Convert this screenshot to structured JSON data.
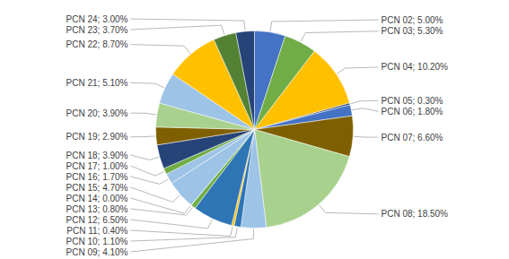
{
  "chart_data": {
    "type": "pie",
    "categories": [
      "PCN 02; 5.00%",
      "PCN 03; 5.30%",
      "PCN 04; 10.20%",
      "PCN 05; 0.30%",
      "PCN 06; 1.80%",
      "PCN 07; 6.60%",
      "PCN 08; 18.50%",
      "PCN 09; 4.10%",
      "PCN 10; 1.10%",
      "PCN 11; 0.40%",
      "PCN 12; 6.50%",
      "PCN 13; 0.80%",
      "PCN 14; 0.00%",
      "PCN 15; 4.70%",
      "PCN 16; 1.70%",
      "PCN 17; 1.00%",
      "PCN 18; 3.90%",
      "PCN 19; 2.90%",
      "PCN 20; 3.90%",
      "PCN 21; 5.10%",
      "PCN 22; 8.70%",
      "PCN 23; 3.70%",
      "PCN 24; 3.00%"
    ],
    "values": [
      5.0,
      5.3,
      10.2,
      0.3,
      1.8,
      6.6,
      18.5,
      4.1,
      1.1,
      0.4,
      6.5,
      0.8,
      0.001,
      4.7,
      1.7,
      1.0,
      3.9,
      2.9,
      3.9,
      5.1,
      8.7,
      3.7,
      3.0
    ],
    "colors": [
      "#4472C4",
      "#70AD47",
      "#FFC000",
      "#264478",
      "#4472C4",
      "#7F6000",
      "#A9D18E",
      "#9DC3E6",
      "#2E75B6",
      "#FFC000",
      "#2E75B6",
      "#70AD47",
      "#D0CECE",
      "#9DC3E6",
      "#9DC3E6",
      "#70AD47",
      "#264478",
      "#7F6000",
      "#A9D18E",
      "#9DC3E6",
      "#FFC000",
      "#548235",
      "#264478"
    ]
  }
}
